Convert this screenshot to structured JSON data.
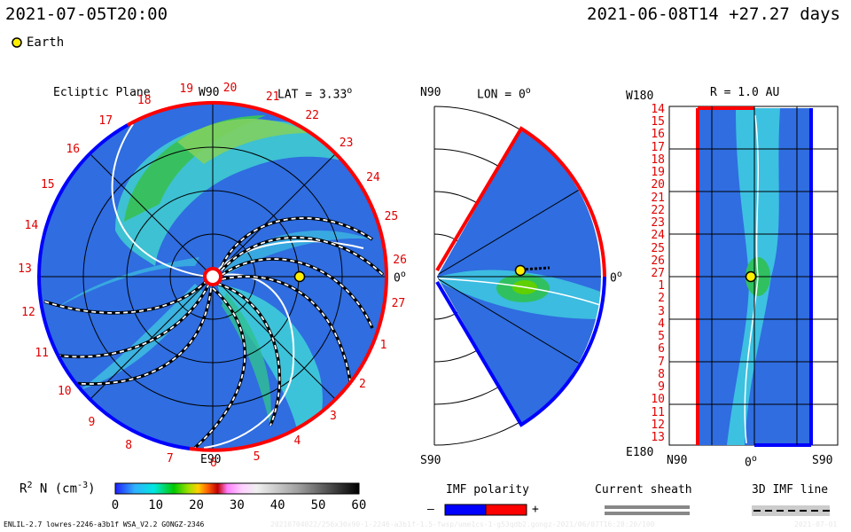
{
  "header": {
    "left_time": "2021-07-05T20:00",
    "right_time": "2021-06-08T14 +27.27 days",
    "earth_label": "Earth"
  },
  "panel_ecliptic": {
    "title": "Ecliptic Plane",
    "top_label": "W90",
    "bottom_label": "E90",
    "right_label": "0",
    "lat_label": "LAT = 3.33",
    "deg": "o",
    "carrington_numbers": [
      "19",
      "20",
      "21",
      "22",
      "23",
      "24",
      "25",
      "26",
      "27",
      "1",
      "2",
      "3",
      "4",
      "5",
      "6",
      "7",
      "8",
      "9",
      "10",
      "11",
      "12",
      "13",
      "14",
      "15",
      "16",
      "17",
      "18"
    ]
  },
  "panel_meridional": {
    "top_label": "N90",
    "lon_label": "LON = 0",
    "deg": "o",
    "right_label": "0",
    "bottom_label": "S90"
  },
  "panel_radius": {
    "r_label": "R = 1.0 AU",
    "top_left": "W180",
    "bottom_left": "E180",
    "y_labels": [
      "14",
      "15",
      "16",
      "17",
      "18",
      "19",
      "20",
      "21",
      "22",
      "23",
      "24",
      "25",
      "26",
      "27",
      "1",
      "2",
      "3",
      "4",
      "5",
      "6",
      "7",
      "8",
      "9",
      "10",
      "11",
      "12",
      "13"
    ],
    "x_labels": [
      "N90",
      "0",
      "S90"
    ],
    "deg": "o"
  },
  "colorbar": {
    "label": "R",
    "label_sup": "2",
    "label_rest": " N (cm",
    "label_exp": "-3",
    "label_end": ")",
    "ticks": [
      "0",
      "10",
      "20",
      "30",
      "40",
      "50",
      "60"
    ]
  },
  "legend": {
    "imf_title": "IMF polarity",
    "minus": "–",
    "plus": "+",
    "sheath_title": "Current sheath",
    "imf3d_title": "3D IMF line"
  },
  "footer": {
    "left": "ENLIL-2.7 lowres-2246-a3b1f WSA_V2.2 GONGZ-2346",
    "mid": "20210704022/256x30x90-1-2246-a3b1f-1.5-fwsp/ume1cs-1-g53qdb2.gongz-2021/06/07T16:28:20/100",
    "right": "2021-07-01"
  },
  "colors": {
    "polarity_negative": "#0000ff",
    "polarity_positive": "#ff0000",
    "earth": "#ffee00",
    "background_field": "#2f6de0"
  },
  "chart_data": {
    "type": "heatmap",
    "quantity": "R^2 N (cm^-3)",
    "color_range": [
      0,
      60
    ],
    "earth_position": {
      "lon_deg": 0,
      "lat_deg": 3.33,
      "r_au": 1.0
    }
  }
}
